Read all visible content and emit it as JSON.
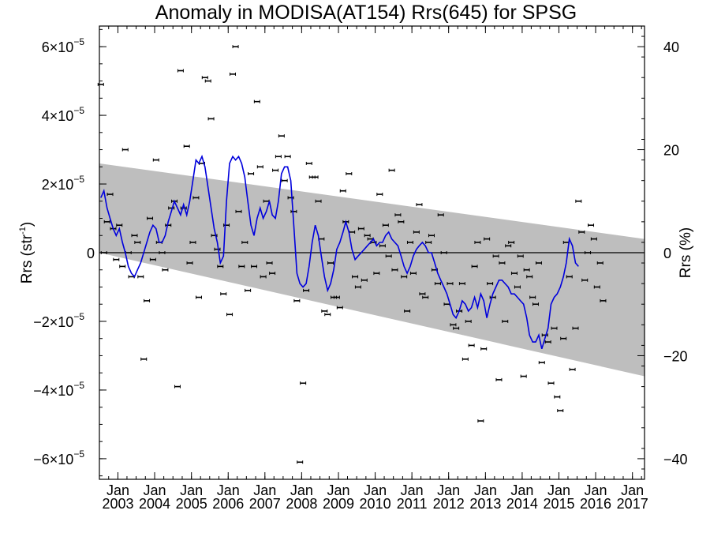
{
  "chart_data": {
    "type": "scatter",
    "title": "Anomaly in MODISA(AT154) Rrs(645) for SPSG",
    "ylabel": "Rrs (str",
    "ylabel_exponent": "-1",
    "ylabel_close": ")",
    "y2label": "Rrs (%)",
    "xlim": [
      "2002-07-01",
      "2017-05-01"
    ],
    "ylim": [
      -6.6e-05,
      6.6e-05
    ],
    "y2lim": [
      -44,
      44
    ],
    "x_tick_months": [
      "Jan",
      "Jan",
      "Jan",
      "Jan",
      "Jan",
      "Jan",
      "Jan",
      "Jan",
      "Jan",
      "Jan",
      "Jan",
      "Jan",
      "Jan",
      "Jan",
      "Jan"
    ],
    "x_tick_years": [
      "2003",
      "2004",
      "2005",
      "2006",
      "2007",
      "2008",
      "2009",
      "2010",
      "2011",
      "2012",
      "2013",
      "2014",
      "2015",
      "2016",
      "2017"
    ],
    "x_tick_dates": [
      "2003-01-01",
      "2004-01-01",
      "2005-01-01",
      "2006-01-01",
      "2007-01-01",
      "2008-01-01",
      "2009-01-01",
      "2010-01-01",
      "2011-01-01",
      "2012-01-01",
      "2013-01-01",
      "2014-01-01",
      "2015-01-01",
      "2016-01-01",
      "2017-01-01"
    ],
    "y_ticks": [
      {
        "value": 6e-05,
        "mant": "6×10",
        "exp": "−5"
      },
      {
        "value": 4e-05,
        "mant": "4×10",
        "exp": "−5"
      },
      {
        "value": 2e-05,
        "mant": "2×10",
        "exp": "−5"
      },
      {
        "value": 0,
        "mant": "0",
        "exp": ""
      },
      {
        "value": -2e-05,
        "mant": "−2×10",
        "exp": "−5"
      },
      {
        "value": -4e-05,
        "mant": "−4×10",
        "exp": "−5"
      },
      {
        "value": -6e-05,
        "mant": "−6×10",
        "exp": "−5"
      }
    ],
    "y2_ticks": [
      {
        "value": 40,
        "label": "40"
      },
      {
        "value": 20,
        "label": "20"
      },
      {
        "value": 0,
        "label": "0"
      },
      {
        "value": -20,
        "label": "−20"
      },
      {
        "value": -40,
        "label": "−40"
      }
    ],
    "trend_band": {
      "start_date": "2002-07-01",
      "end_date": "2017-05-01",
      "upper": [
        2.6e-05,
        4e-06
      ],
      "lower": [
        0.0,
        -3.6e-05
      ],
      "color": "#bebebe"
    },
    "colors": {
      "points": "#000000",
      "smooth": "#0000dd",
      "zero_line": "#000000",
      "band": "#bebebe"
    },
    "series": [
      {
        "kind": "monthly_anomaly_points",
        "start": "2002-07",
        "values": [
          4.9e-05,
          0.0,
          9e-06,
          1.7e-05,
          7e-06,
          -2e-06,
          8e-06,
          -4e-06,
          3e-05,
          0.0,
          -7e-06,
          5e-06,
          3e-06,
          -7e-06,
          -3.1e-05,
          -1.4e-05,
          1e-05,
          -2e-06,
          2.7e-05,
          3e-06,
          0.0,
          -5e-06,
          8e-06,
          1.3e-05,
          1.5e-05,
          -3.9e-05,
          5.3e-05,
          1.3e-05,
          3.1e-05,
          -3e-06,
          3e-06,
          1.6e-05,
          -1.3e-05,
          2.6e-05,
          5.1e-05,
          5e-05,
          3.9e-05,
          5e-06,
          1e-06,
          -4e-06,
          -1.2e-05,
          8e-06,
          -1.8e-05,
          5.2e-05,
          6e-05,
          1.2e-05,
          -4e-06,
          3e-06,
          -1.1e-05,
          2.3e-05,
          -4e-06,
          4.4e-05,
          2.5e-05,
          -7e-06,
          1.5e-05,
          -3e-06,
          -6e-06,
          2.4e-05,
          2.8e-05,
          3.4e-05,
          2.1e-05,
          2.8e-05,
          1.6e-05,
          1.2e-05,
          -1.4e-05,
          -6.1e-05,
          -3.8e-05,
          -1.1e-05,
          2.6e-05,
          2.2e-05,
          2.2e-05,
          1.5e-05,
          4e-06,
          -1.7e-05,
          -1.8e-05,
          -3e-06,
          -1.3e-05,
          -1.3e-05,
          -1.6e-05,
          1.8e-05,
          9e-06,
          2.3e-05,
          6e-06,
          -7e-06,
          -1e-05,
          7e-06,
          -8e-06,
          5e-06,
          4e-06,
          3e-06,
          -6e-06,
          1.7e-05,
          2e-06,
          8e-06,
          -1e-06,
          2.4e-05,
          -5e-06,
          1.1e-05,
          9e-06,
          -7e-06,
          -1.7e-05,
          3e-06,
          -6e-06,
          6e-06,
          1.4e-05,
          -1.2e-05,
          -1.3e-05,
          3e-06,
          5e-06,
          -5e-06,
          -9e-06,
          1.1e-05,
          0.0,
          -1.5e-05,
          -9e-06,
          -2.1e-05,
          -2.2e-05,
          -1.7e-05,
          -9e-06,
          -3.1e-05,
          -2e-05,
          -2.7e-05,
          -4e-06,
          3e-06,
          -4.9e-05,
          -2.8e-05,
          4e-06,
          -9e-06,
          -1.3e-05,
          -1e-06,
          -3.7e-05,
          -3e-06,
          -2e-05,
          2e-06,
          3e-06,
          -6e-06,
          -1e-05,
          -1e-06,
          -3.6e-05,
          -5e-06,
          -7e-06,
          -1.3e-05,
          -1.5e-05,
          -3e-06,
          -3.2e-05,
          -2.4e-05,
          -2.6e-05,
          -3.8e-05,
          -2.2e-05,
          -4.2e-05,
          -4.6e-05,
          -2.5e-05,
          3e-06,
          -7e-06,
          -3.4e-05,
          -2.2e-05,
          1.5e-05,
          6e-06,
          -8e-06,
          0.0,
          8e-06,
          4e-06,
          -1e-05,
          -3e-06,
          -1.4e-05
        ]
      },
      {
        "kind": "smoothed_line",
        "start": "2002-07",
        "values": [
          1.6e-05,
          1.8e-05,
          1.3e-05,
          1e-05,
          7e-06,
          5e-06,
          7e-06,
          3e-06,
          0.0,
          -4e-06,
          -6e-06,
          -7e-06,
          -5e-06,
          -3e-06,
          0.0,
          3e-06,
          6e-06,
          8e-06,
          7e-06,
          3e-06,
          3e-06,
          5e-06,
          9e-06,
          1.2e-05,
          1.5e-05,
          1.3e-05,
          1.1e-05,
          1.4e-05,
          1.1e-05,
          1.5e-05,
          2.1e-05,
          2.7e-05,
          2.6e-05,
          2.8e-05,
          2.5e-05,
          1.9e-05,
          1.3e-05,
          7e-06,
          3e-06,
          -3e-06,
          -1e-06,
          1.5e-05,
          2.6e-05,
          2.8e-05,
          2.7e-05,
          2.8e-05,
          2.6e-05,
          2.2e-05,
          1.5e-05,
          8e-06,
          5e-06,
          1e-05,
          1.3e-05,
          1e-05,
          1.2e-05,
          1.5e-05,
          1.1e-05,
          1e-05,
          1.5e-05,
          2.3e-05,
          2.5e-05,
          2.5e-05,
          2.1e-05,
          8e-06,
          -6e-06,
          -9e-06,
          -1e-05,
          -9e-06,
          -4e-06,
          3e-06,
          8e-06,
          5e-06,
          -1e-06,
          -7e-06,
          -1.1e-05,
          -9e-06,
          -5e-06,
          1e-06,
          3e-06,
          6e-06,
          9e-06,
          6e-06,
          1e-06,
          -2e-06,
          -1e-06,
          0.0,
          1e-06,
          2e-06,
          3e-06,
          4e-06,
          2e-06,
          3e-06,
          3e-06,
          5e-06,
          6e-06,
          4e-06,
          3e-06,
          2e-06,
          -1e-06,
          -4e-06,
          -6e-06,
          -4e-06,
          -1e-06,
          1e-06,
          2e-06,
          3e-06,
          2e-06,
          0.0,
          0.0,
          -3e-06,
          -6e-06,
          -8e-06,
          -1e-05,
          -1.2e-05,
          -1.5e-05,
          -1.8e-05,
          -1.9e-05,
          -1.7e-05,
          -1.4e-05,
          -1.5e-05,
          -1.7e-05,
          -1.6e-05,
          -1.3e-05,
          -1.6e-05,
          -1.2e-05,
          -1.4e-05,
          -1.9e-05,
          -1.5e-05,
          -1.2e-05,
          -1e-05,
          -8e-06,
          -8e-06,
          -9e-06,
          -1e-05,
          -1.2e-05,
          -1.2e-05,
          -1.3e-05,
          -1.4e-05,
          -1.5e-05,
          -1.9e-05,
          -2.4e-05,
          -2.6e-05,
          -2.6e-05,
          -2.4e-05,
          -2.8e-05,
          -2.5e-05,
          -2.2e-05,
          -1.5e-05,
          -1.3e-05,
          -1.2e-05,
          -1e-05,
          -7e-06,
          -3e-06,
          4e-06,
          2e-06,
          -3e-06,
          -4e-06
        ]
      }
    ]
  }
}
